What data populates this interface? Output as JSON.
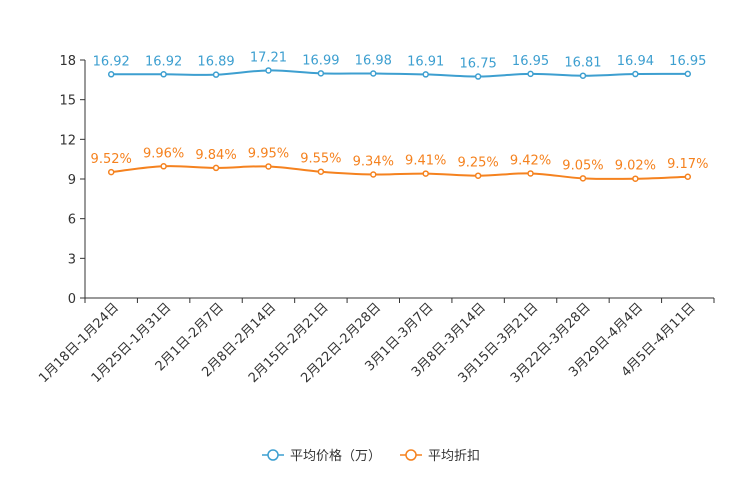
{
  "chart_data": {
    "type": "line",
    "title": "",
    "xlabel": "",
    "ylabel": "",
    "ylim": [
      0,
      18
    ],
    "yticks": [
      0,
      3,
      6,
      9,
      12,
      15,
      18
    ],
    "grid": false,
    "legend_position": "bottom-center",
    "categories": [
      "1月18日-1月24日",
      "1月25日-1月31日",
      "2月1日-2月7日",
      "2月8日-2月14日",
      "2月15日-2月21日",
      "2月22日-2月28日",
      "3月1日-3月7日",
      "3月8日-3月14日",
      "3月15日-3月21日",
      "3月22日-3月28日",
      "3月29日-4月4日",
      "4月5日-4月11日"
    ],
    "series": [
      {
        "name": "平均价格（万）",
        "color": "#3d9fd0",
        "values": [
          16.92,
          16.92,
          16.89,
          17.21,
          16.99,
          16.98,
          16.91,
          16.75,
          16.95,
          16.81,
          16.94,
          16.95
        ],
        "labels": [
          "16.92",
          "16.92",
          "16.89",
          "17.21",
          "16.99",
          "16.98",
          "16.91",
          "16.75",
          "16.95",
          "16.81",
          "16.94",
          "16.95"
        ]
      },
      {
        "name": "平均折扣",
        "color": "#f5821f",
        "values": [
          9.52,
          9.96,
          9.84,
          9.95,
          9.55,
          9.34,
          9.41,
          9.25,
          9.42,
          9.05,
          9.02,
          9.17
        ],
        "labels": [
          "9.52%",
          "9.96%",
          "9.84%",
          "9.95%",
          "9.55%",
          "9.34%",
          "9.41%",
          "9.25%",
          "9.42%",
          "9.05%",
          "9.02%",
          "9.17%"
        ]
      }
    ]
  }
}
